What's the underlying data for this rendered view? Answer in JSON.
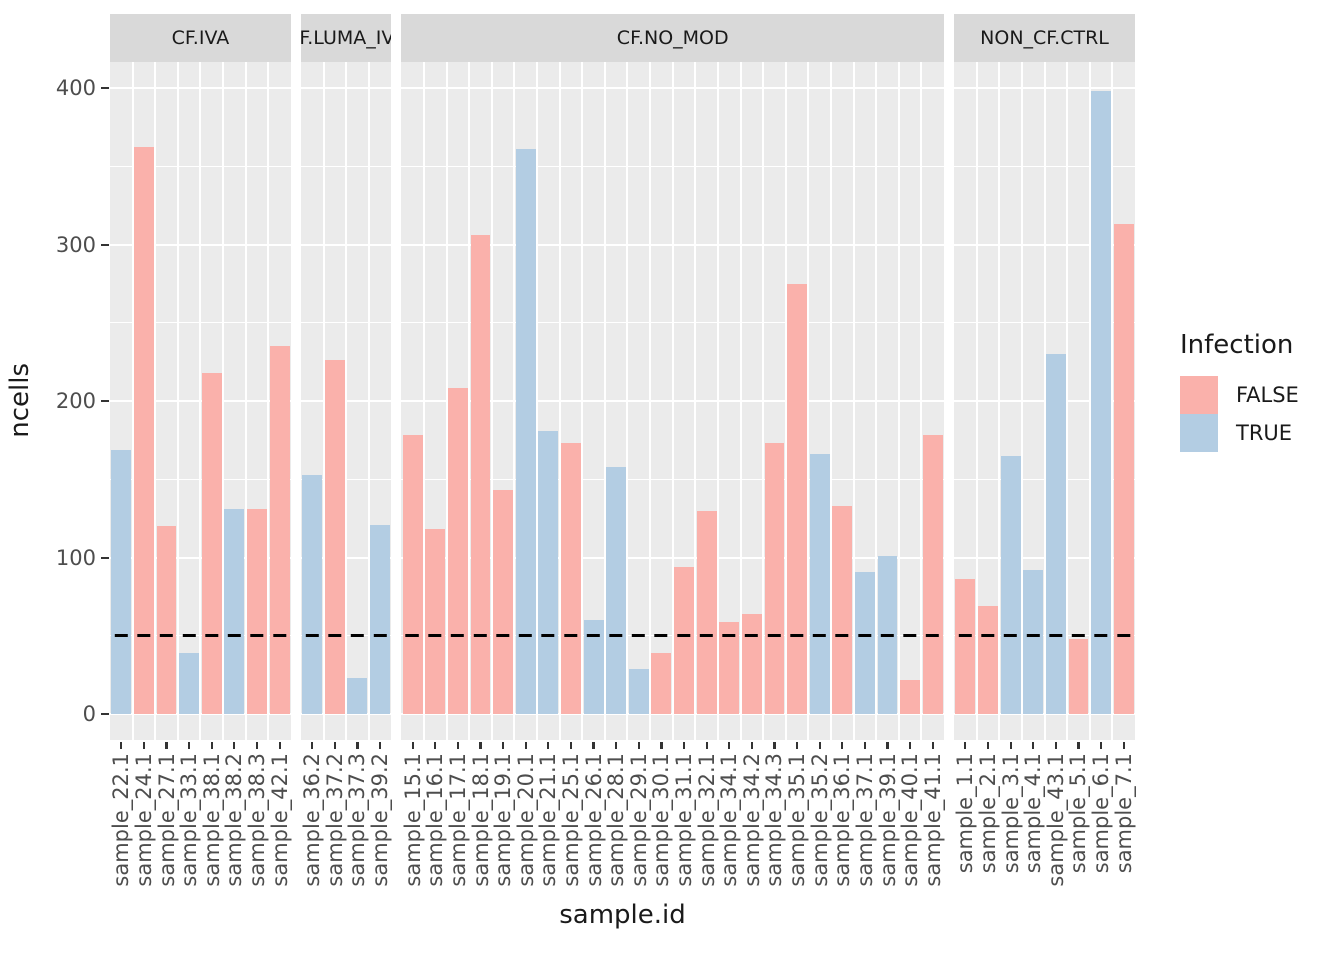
{
  "chart_data": {
    "type": "bar",
    "title": "",
    "xlabel": "sample.id",
    "ylabel": "ncells",
    "ylim": [
      0,
      400
    ],
    "yticks": [
      0,
      100,
      200,
      300,
      400
    ],
    "yminor": [
      50,
      150,
      250,
      350
    ],
    "grid": "on",
    "legend_position": "right",
    "legend": {
      "title": "Infection",
      "entries": [
        {
          "label": "FALSE",
          "color": "#FAB1AB"
        },
        {
          "label": "TRUE",
          "color": "#B3CDE3"
        }
      ]
    },
    "hline": {
      "y": 50,
      "style": "dashed",
      "color": "#000000"
    },
    "facets": [
      {
        "label": "CF.IVA",
        "bars": [
          {
            "sample": "sample_22.1",
            "infection": "TRUE",
            "ncells": 169
          },
          {
            "sample": "sample_24.1",
            "infection": "FALSE",
            "ncells": 362
          },
          {
            "sample": "sample_27.1",
            "infection": "FALSE",
            "ncells": 120
          },
          {
            "sample": "sample_33.1",
            "infection": "TRUE",
            "ncells": 39
          },
          {
            "sample": "sample_38.1",
            "infection": "FALSE",
            "ncells": 218
          },
          {
            "sample": "sample_38.2",
            "infection": "TRUE",
            "ncells": 131
          },
          {
            "sample": "sample_38.3",
            "infection": "FALSE",
            "ncells": 131
          },
          {
            "sample": "sample_42.1",
            "infection": "FALSE",
            "ncells": 235
          }
        ]
      },
      {
        "label": "CF.LUMA_IVA",
        "bars": [
          {
            "sample": "sample_36.2",
            "infection": "TRUE",
            "ncells": 153
          },
          {
            "sample": "sample_37.2",
            "infection": "FALSE",
            "ncells": 226
          },
          {
            "sample": "sample_37.3",
            "infection": "TRUE",
            "ncells": 23
          },
          {
            "sample": "sample_39.2",
            "infection": "TRUE",
            "ncells": 121
          }
        ]
      },
      {
        "label": "CF.NO_MOD",
        "bars": [
          {
            "sample": "sample_15.1",
            "infection": "FALSE",
            "ncells": 178
          },
          {
            "sample": "sample_16.1",
            "infection": "FALSE",
            "ncells": 118
          },
          {
            "sample": "sample_17.1",
            "infection": "FALSE",
            "ncells": 208
          },
          {
            "sample": "sample_18.1",
            "infection": "FALSE",
            "ncells": 306
          },
          {
            "sample": "sample_19.1",
            "infection": "FALSE",
            "ncells": 143
          },
          {
            "sample": "sample_20.1",
            "infection": "TRUE",
            "ncells": 361
          },
          {
            "sample": "sample_21.1",
            "infection": "TRUE",
            "ncells": 181
          },
          {
            "sample": "sample_25.1",
            "infection": "FALSE",
            "ncells": 173
          },
          {
            "sample": "sample_26.1",
            "infection": "TRUE",
            "ncells": 60
          },
          {
            "sample": "sample_28.1",
            "infection": "TRUE",
            "ncells": 158
          },
          {
            "sample": "sample_29.1",
            "infection": "TRUE",
            "ncells": 29
          },
          {
            "sample": "sample_30.1",
            "infection": "FALSE",
            "ncells": 39
          },
          {
            "sample": "sample_31.1",
            "infection": "FALSE",
            "ncells": 94
          },
          {
            "sample": "sample_32.1",
            "infection": "FALSE",
            "ncells": 130
          },
          {
            "sample": "sample_34.1",
            "infection": "FALSE",
            "ncells": 59
          },
          {
            "sample": "sample_34.2",
            "infection": "FALSE",
            "ncells": 64
          },
          {
            "sample": "sample_34.3",
            "infection": "FALSE",
            "ncells": 173
          },
          {
            "sample": "sample_35.1",
            "infection": "FALSE",
            "ncells": 275
          },
          {
            "sample": "sample_35.2",
            "infection": "TRUE",
            "ncells": 166
          },
          {
            "sample": "sample_36.1",
            "infection": "FALSE",
            "ncells": 133
          },
          {
            "sample": "sample_37.1",
            "infection": "TRUE",
            "ncells": 91
          },
          {
            "sample": "sample_39.1",
            "infection": "TRUE",
            "ncells": 101
          },
          {
            "sample": "sample_40.1",
            "infection": "FALSE",
            "ncells": 22
          },
          {
            "sample": "sample_41.1",
            "infection": "FALSE",
            "ncells": 178
          }
        ]
      },
      {
        "label": "NON_CF.CTRL",
        "bars": [
          {
            "sample": "sample_1.1",
            "infection": "FALSE",
            "ncells": 86
          },
          {
            "sample": "sample_2.1",
            "infection": "FALSE",
            "ncells": 69
          },
          {
            "sample": "sample_3.1",
            "infection": "TRUE",
            "ncells": 165
          },
          {
            "sample": "sample_4.1",
            "infection": "TRUE",
            "ncells": 92
          },
          {
            "sample": "sample_43.1",
            "infection": "TRUE",
            "ncells": 230
          },
          {
            "sample": "sample_5.1",
            "infection": "FALSE",
            "ncells": 48
          },
          {
            "sample": "sample_6.1",
            "infection": "TRUE",
            "ncells": 398
          },
          {
            "sample": "sample_7.1",
            "infection": "FALSE",
            "ncells": 313
          }
        ]
      }
    ],
    "style_colors": {
      "panel_background": "#EBEBEB",
      "strip_background": "#D9D9D9",
      "gridline": "#FFFFFF",
      "axis_text": "#4D4D4D",
      "tick_mark": "#333333"
    }
  }
}
